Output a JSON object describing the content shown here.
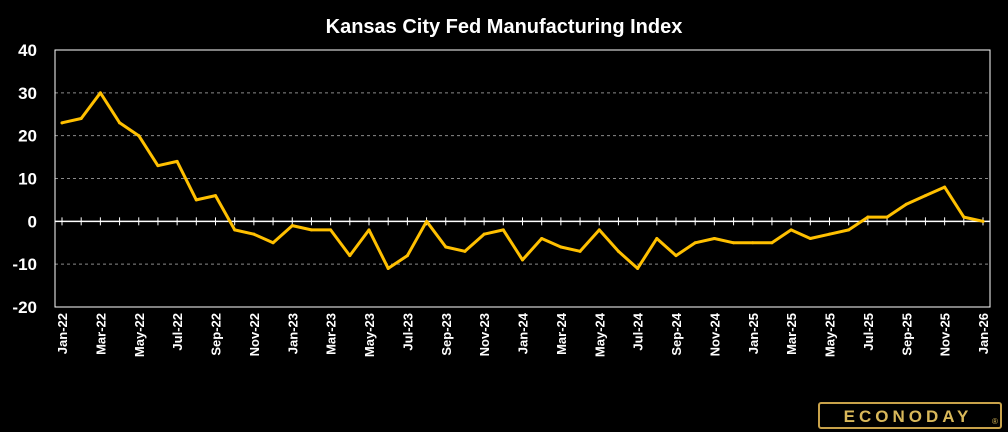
{
  "colors": {
    "background": "#000000",
    "series": "#FFC000",
    "grid": "#8a8a8a",
    "text": "#ffffff",
    "logo": "#d9b85a"
  },
  "logo": {
    "text": "ECONODAY",
    "registered_mark": "®"
  },
  "chart_data": {
    "type": "line",
    "title": "Kansas City Fed Manufacturing Index",
    "xlabel": "",
    "ylabel": "",
    "ylim": [
      -20,
      40
    ],
    "yticks": [
      40,
      30,
      20,
      10,
      0,
      -10,
      -20
    ],
    "grid": "horizontal dashed",
    "legend": "none",
    "x": [
      "Jan-22",
      "Feb-22",
      "Mar-22",
      "Apr-22",
      "May-22",
      "Jun-22",
      "Jul-22",
      "Aug-22",
      "Sep-22",
      "Oct-22",
      "Nov-22",
      "Dec-22",
      "Jan-23",
      "Feb-23",
      "Mar-23",
      "Apr-23",
      "May-23",
      "Jun-23",
      "Jul-23",
      "Aug-23",
      "Sep-23",
      "Oct-23",
      "Nov-23",
      "Dec-23",
      "Jan-24",
      "Feb-24",
      "Mar-24",
      "Apr-24",
      "May-24",
      "Jun-24",
      "Jul-24",
      "Aug-24",
      "Sep-24",
      "Oct-24",
      "Nov-24",
      "Dec-24",
      "Jan-25",
      "Feb-25",
      "Mar-25",
      "Apr-25",
      "May-25",
      "Jun-25",
      "Jul-25",
      "Aug-25",
      "Sep-25",
      "Oct-25",
      "Nov-25",
      "Dec-25",
      "Jan-26"
    ],
    "x_tick_labels": [
      "Jan-22",
      "Mar-22",
      "May-22",
      "Jul-22",
      "Sep-22",
      "Nov-22",
      "Jan-23",
      "Mar-23",
      "May-23",
      "Jul-23",
      "Sep-23",
      "Nov-23",
      "Jan-24",
      "Mar-24",
      "May-24",
      "Jul-24",
      "Sep-24",
      "Nov-24",
      "Jan-25",
      "Mar-25",
      "May-25",
      "Jul-25",
      "Sep-25",
      "Nov-25",
      "Jan-26"
    ],
    "series": [
      {
        "values": [
          23,
          24,
          30,
          23,
          20,
          13,
          14,
          5,
          6,
          -2,
          -3,
          -5,
          -1,
          -2,
          -2,
          -8,
          -2,
          -11,
          -8,
          0,
          -6,
          -7,
          -3,
          -2,
          -9,
          -4,
          -6,
          -7,
          -2,
          -7,
          -11,
          -4,
          -8,
          -5,
          -4,
          -5,
          -5,
          -5,
          -2,
          -4,
          -3,
          -2,
          1,
          1,
          4,
          6,
          8,
          1,
          0
        ]
      }
    ]
  }
}
